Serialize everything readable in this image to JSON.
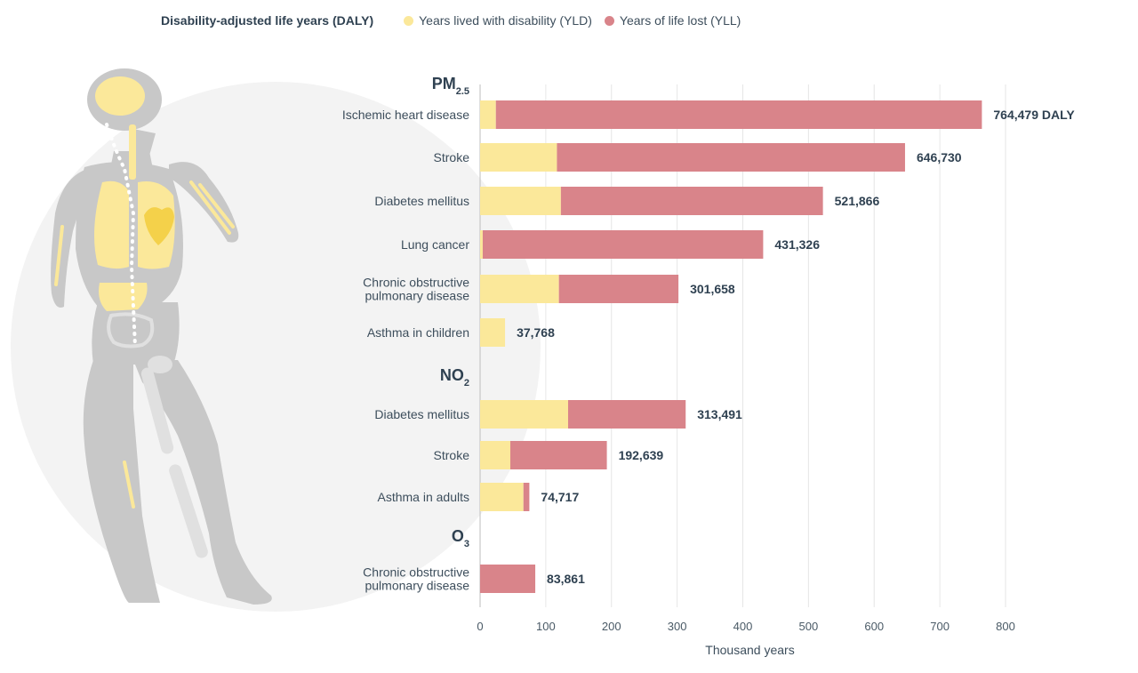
{
  "colors": {
    "yld": "#fbe89a",
    "yll": "#d9848a",
    "grid": "#e6e6e6",
    "figure": "#c8c8c8",
    "backdrop": "#f3f3f3",
    "organ": "#fbe89a",
    "heart": "#f4d14a"
  },
  "legend": {
    "title": "Disability-adjusted life years (DALY)",
    "yld_label": "Years lived with disability (YLD)",
    "yll_label": "Years of life lost (YLL)"
  },
  "illustration": {
    "name": "human-body-silhouette"
  },
  "chart_data": {
    "type": "bar",
    "orientation": "horizontal",
    "stacked": true,
    "xlabel": "Thousand years",
    "xlim": [
      0,
      800
    ],
    "xticks": [
      0,
      100,
      200,
      300,
      400,
      500,
      600,
      700,
      800
    ],
    "grid": true,
    "legend_position": "top",
    "series": [
      {
        "name": "Years lived with disability (YLD)",
        "key": "yld"
      },
      {
        "name": "Years of life lost (YLL)",
        "key": "yll"
      }
    ],
    "groups": [
      {
        "label": "PM",
        "subscript": "2.5",
        "bars": [
          {
            "label": [
              "Ischemic heart disease"
            ],
            "yld": 24,
            "yll": 740,
            "total_label": "764,479 DALY"
          },
          {
            "label": [
              "Stroke"
            ],
            "yld": 117,
            "yll": 530,
            "total_label": "646,730"
          },
          {
            "label": [
              "Diabetes mellitus"
            ],
            "yld": 123,
            "yll": 399,
            "total_label": "521,866"
          },
          {
            "label": [
              "Lung cancer"
            ],
            "yld": 4,
            "yll": 427,
            "total_label": "431,326"
          },
          {
            "label": [
              "Chronic obstructive",
              "pulmonary disease"
            ],
            "yld": 120,
            "yll": 182,
            "total_label": "301,658"
          },
          {
            "label": [
              "Asthma in children"
            ],
            "yld": 38,
            "yll": 0,
            "total_label": "37,768"
          }
        ]
      },
      {
        "label": "NO",
        "subscript": "2",
        "bars": [
          {
            "label": [
              "Diabetes mellitus"
            ],
            "yld": 134,
            "yll": 179,
            "total_label": "313,491"
          },
          {
            "label": [
              "Stroke"
            ],
            "yld": 46,
            "yll": 147,
            "total_label": "192,639"
          },
          {
            "label": [
              "Asthma in adults"
            ],
            "yld": 66,
            "yll": 9,
            "total_label": "74,717"
          }
        ]
      },
      {
        "label": "O",
        "subscript": "3",
        "bars": [
          {
            "label": [
              "Chronic obstructive",
              "pulmonary disease"
            ],
            "yld": 0,
            "yll": 84,
            "total_label": "83,861"
          }
        ]
      }
    ]
  }
}
